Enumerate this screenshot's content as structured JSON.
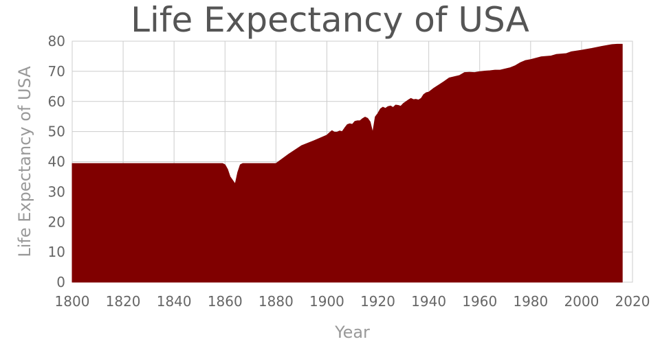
{
  "chart_data": {
    "type": "area",
    "title": "Life Expectancy of USA",
    "xlabel": "Year",
    "ylabel": "Life Expectancy of USA",
    "xlim": [
      1800,
      2020
    ],
    "ylim": [
      0,
      80
    ],
    "x_ticks": [
      1800,
      1820,
      1840,
      1860,
      1880,
      1900,
      1920,
      1940,
      1960,
      1980,
      2000,
      2020
    ],
    "y_ticks": [
      0,
      10,
      20,
      30,
      40,
      50,
      60,
      70,
      80
    ],
    "grid": true,
    "legend": "none",
    "fill_color": "#800000",
    "text_color": "#666666",
    "grid_color": "#cccccc",
    "series": [
      {
        "x": [
          1800,
          1859,
          1860,
          1861,
          1862,
          1863,
          1864,
          1865,
          1866,
          1867,
          1868,
          1880,
          1885,
          1890,
          1895,
          1900,
          1901,
          1902,
          1903,
          1904,
          1905,
          1906,
          1907,
          1908,
          1909,
          1910,
          1911,
          1912,
          1913,
          1914,
          1915,
          1916,
          1917,
          1918,
          1919,
          1920,
          1921,
          1922,
          1923,
          1924,
          1925,
          1926,
          1927,
          1928,
          1929,
          1930,
          1931,
          1932,
          1933,
          1934,
          1935,
          1936,
          1937,
          1938,
          1939,
          1940,
          1942,
          1944,
          1946,
          1948,
          1950,
          1952,
          1954,
          1956,
          1958,
          1960,
          1962,
          1964,
          1966,
          1968,
          1970,
          1972,
          1974,
          1976,
          1978,
          1980,
          1984,
          1988,
          1990,
          1994,
          1996,
          2000,
          2004,
          2008,
          2012,
          2014,
          2016
        ],
        "values": [
          39.4,
          39.4,
          39.0,
          37.5,
          35.0,
          33.8,
          32.6,
          36.5,
          39.0,
          39.4,
          39.4,
          39.4,
          42.5,
          45.3,
          47.0,
          48.8,
          49.6,
          50.3,
          49.8,
          49.8,
          50.2,
          50.0,
          51.2,
          52.3,
          52.6,
          52.4,
          53.4,
          53.6,
          53.6,
          54.3,
          54.8,
          54.4,
          53.2,
          49.7,
          54.9,
          56.0,
          57.5,
          58.1,
          57.7,
          58.3,
          58.5,
          58.0,
          58.8,
          58.7,
          58.4,
          59.3,
          59.9,
          60.5,
          61.0,
          60.6,
          60.7,
          60.5,
          61.0,
          62.3,
          62.9,
          63.1,
          64.4,
          65.5,
          66.6,
          67.8,
          68.2,
          68.6,
          69.6,
          69.7,
          69.6,
          69.9,
          70.1,
          70.2,
          70.4,
          70.4,
          70.8,
          71.2,
          71.9,
          72.9,
          73.6,
          73.9,
          74.8,
          75.1,
          75.6,
          75.9,
          76.5,
          77.0,
          77.6,
          78.3,
          78.9,
          79.0,
          79.0
        ]
      }
    ]
  }
}
